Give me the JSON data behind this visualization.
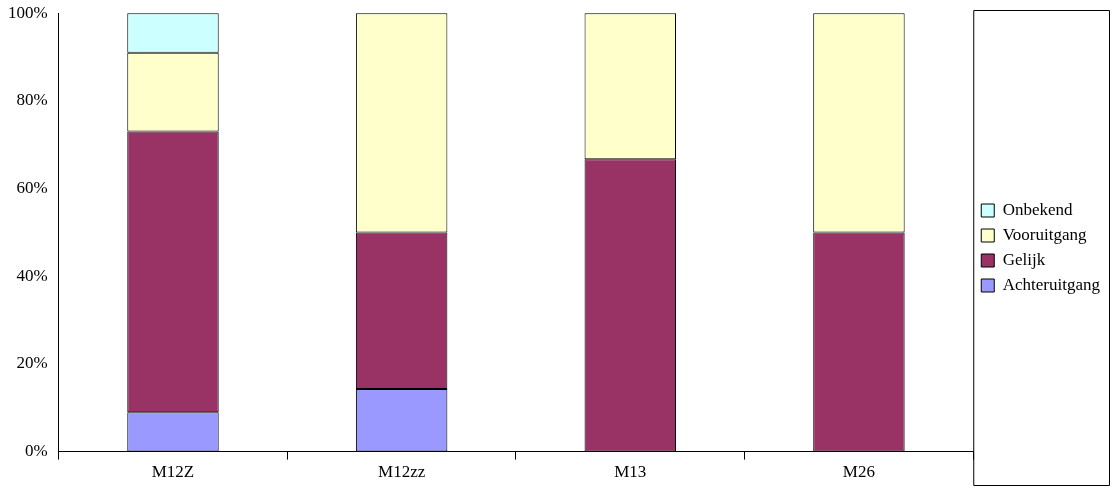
{
  "chart_data": {
    "type": "bar",
    "stacked": true,
    "categories": [
      "M12Z",
      "M12zz",
      "M13",
      "M26"
    ],
    "series": [
      {
        "name": "Achteruitgang",
        "color": "#9999ff",
        "values": [
          9,
          14.3,
          0,
          0
        ]
      },
      {
        "name": "Gelijk",
        "color": "#993366",
        "values": [
          64,
          35.7,
          66.7,
          50
        ]
      },
      {
        "name": "Vooruitgang",
        "color": "#ffffcc",
        "values": [
          18,
          50,
          33.3,
          50
        ]
      },
      {
        "name": "Onbekend",
        "color": "#ccffff",
        "values": [
          9,
          0,
          0,
          0
        ]
      }
    ],
    "ylim": [
      0,
      100
    ],
    "yticks": [
      {
        "value": 0,
        "label": "0%"
      },
      {
        "value": 20,
        "label": "20%"
      },
      {
        "value": 40,
        "label": "40%"
      },
      {
        "value": 60,
        "label": "60%"
      },
      {
        "value": 80,
        "label": "80%"
      },
      {
        "value": 100,
        "label": "100%"
      }
    ],
    "grid": false,
    "legend": "right"
  }
}
